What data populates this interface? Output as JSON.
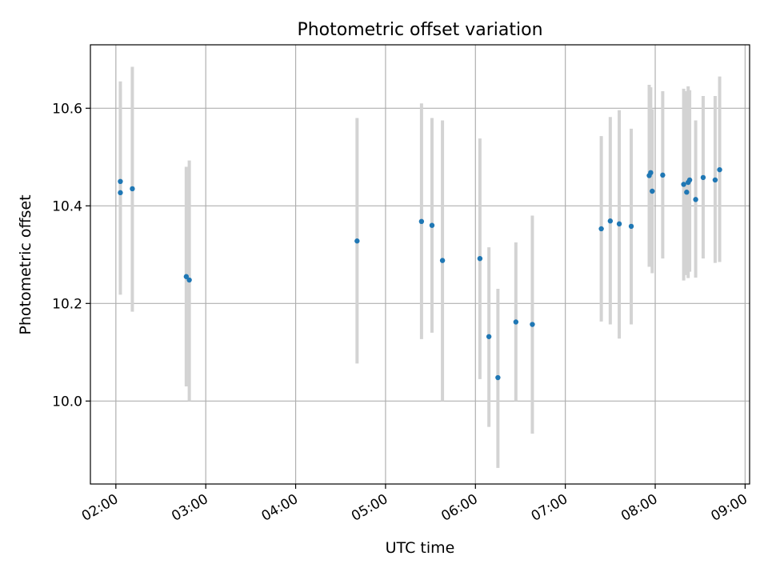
{
  "chart_data": {
    "type": "scatter",
    "title": "Photometric offset variation",
    "xlabel": "UTC time",
    "ylabel": "Photometric offset",
    "x_tick_labels": [
      "02:00",
      "03:00",
      "04:00",
      "05:00",
      "06:00",
      "07:00",
      "08:00",
      "09:00"
    ],
    "y_tick_labels": [
      "10.0",
      "10.2",
      "10.4",
      "10.6"
    ],
    "y_ticks": [
      10.0,
      10.2,
      10.4,
      10.6
    ],
    "xlim": [
      "01:43",
      "09:03"
    ],
    "ylim": [
      9.83,
      10.73
    ],
    "grid": true,
    "point_color": "#1f77b4",
    "errorbar_color": "#d3d3d3",
    "grid_color": "#b0b0b0",
    "points": [
      {
        "time": "02:03",
        "y": 10.45,
        "yerr_low": 10.245,
        "yerr_high": 10.655
      },
      {
        "time": "02:03",
        "y": 10.427,
        "yerr_low": 10.218,
        "yerr_high": 10.64
      },
      {
        "time": "02:11",
        "y": 10.435,
        "yerr_low": 10.183,
        "yerr_high": 10.685
      },
      {
        "time": "02:47",
        "y": 10.255,
        "yerr_low": 10.03,
        "yerr_high": 10.48
      },
      {
        "time": "02:49",
        "y": 10.248,
        "yerr_low": 10.0,
        "yerr_high": 10.493
      },
      {
        "time": "04:41",
        "y": 10.328,
        "yerr_low": 10.077,
        "yerr_high": 10.58
      },
      {
        "time": "05:24",
        "y": 10.368,
        "yerr_low": 10.127,
        "yerr_high": 10.61
      },
      {
        "time": "05:31",
        "y": 10.36,
        "yerr_low": 10.14,
        "yerr_high": 10.58
      },
      {
        "time": "05:38",
        "y": 10.288,
        "yerr_low": 10.0,
        "yerr_high": 10.575
      },
      {
        "time": "06:03",
        "y": 10.292,
        "yerr_low": 10.045,
        "yerr_high": 10.538
      },
      {
        "time": "06:09",
        "y": 10.132,
        "yerr_low": 9.947,
        "yerr_high": 10.315
      },
      {
        "time": "06:15",
        "y": 10.048,
        "yerr_low": 9.863,
        "yerr_high": 10.23
      },
      {
        "time": "06:27",
        "y": 10.162,
        "yerr_low": 10.0,
        "yerr_high": 10.325
      },
      {
        "time": "06:38",
        "y": 10.157,
        "yerr_low": 9.933,
        "yerr_high": 10.38
      },
      {
        "time": "07:24",
        "y": 10.353,
        "yerr_low": 10.163,
        "yerr_high": 10.543
      },
      {
        "time": "07:30",
        "y": 10.369,
        "yerr_low": 10.157,
        "yerr_high": 10.582
      },
      {
        "time": "07:36",
        "y": 10.363,
        "yerr_low": 10.128,
        "yerr_high": 10.596
      },
      {
        "time": "07:44",
        "y": 10.358,
        "yerr_low": 10.157,
        "yerr_high": 10.558
      },
      {
        "time": "07:56",
        "y": 10.462,
        "yerr_low": 10.275,
        "yerr_high": 10.648
      },
      {
        "time": "07:57",
        "y": 10.468,
        "yerr_low": 10.29,
        "yerr_high": 10.643
      },
      {
        "time": "07:58",
        "y": 10.43,
        "yerr_low": 10.262,
        "yerr_high": 10.598
      },
      {
        "time": "08:05",
        "y": 10.463,
        "yerr_low": 10.292,
        "yerr_high": 10.635
      },
      {
        "time": "08:19",
        "y": 10.444,
        "yerr_low": 10.247,
        "yerr_high": 10.64
      },
      {
        "time": "08:21",
        "y": 10.428,
        "yerr_low": 10.258,
        "yerr_high": 10.635
      },
      {
        "time": "08:22",
        "y": 10.448,
        "yerr_low": 10.252,
        "yerr_high": 10.645
      },
      {
        "time": "08:23",
        "y": 10.453,
        "yerr_low": 10.265,
        "yerr_high": 10.637
      },
      {
        "time": "08:27",
        "y": 10.413,
        "yerr_low": 10.253,
        "yerr_high": 10.575
      },
      {
        "time": "08:32",
        "y": 10.458,
        "yerr_low": 10.292,
        "yerr_high": 10.625
      },
      {
        "time": "08:40",
        "y": 10.453,
        "yerr_low": 10.283,
        "yerr_high": 10.625
      },
      {
        "time": "08:43",
        "y": 10.474,
        "yerr_low": 10.285,
        "yerr_high": 10.665
      }
    ]
  }
}
